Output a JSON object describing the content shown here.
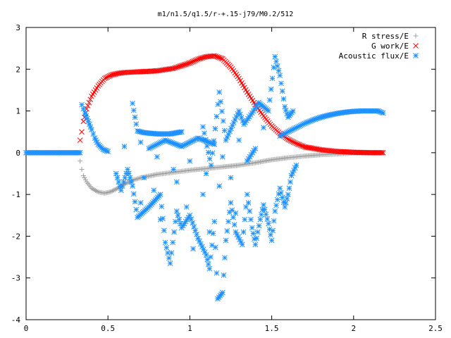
{
  "chart_data": {
    "type": "scatter",
    "title": "m1/n1.5/q1.5/r-+.15-j79/M0.2/512",
    "xlabel": "",
    "ylabel": "",
    "xlim": [
      0,
      2.5
    ],
    "ylim": [
      -4,
      3
    ],
    "x_ticks": [
      "0",
      "0.5",
      "1",
      "1.5",
      "2",
      "2.5"
    ],
    "y_ticks": [
      "3",
      "2",
      "1",
      "0",
      "-1",
      "-2",
      "-3",
      "-4"
    ],
    "grid": false,
    "legend_position": "top-right",
    "series": [
      {
        "name": "R stress/E",
        "marker": "plus",
        "color": "#a0a0a0",
        "points": [
          [
            0.33,
            -0.2
          ],
          [
            0.34,
            -0.4
          ],
          [
            0.35,
            -0.55
          ],
          [
            0.37,
            -0.7
          ],
          [
            0.4,
            -0.85
          ],
          [
            0.44,
            -0.94
          ],
          [
            0.48,
            -0.97
          ],
          [
            0.52,
            -0.93
          ],
          [
            0.56,
            -0.85
          ],
          [
            0.6,
            -0.75
          ],
          [
            0.65,
            -0.66
          ],
          [
            0.7,
            -0.6
          ],
          [
            0.8,
            -0.52
          ],
          [
            0.9,
            -0.47
          ],
          [
            1.0,
            -0.42
          ],
          [
            1.1,
            -0.38
          ],
          [
            1.2,
            -0.34
          ],
          [
            1.3,
            -0.3
          ],
          [
            1.4,
            -0.24
          ],
          [
            1.5,
            -0.17
          ],
          [
            1.6,
            -0.12
          ],
          [
            1.7,
            -0.08
          ],
          [
            1.8,
            -0.05
          ],
          [
            1.9,
            -0.03
          ],
          [
            2.0,
            -0.01
          ],
          [
            2.1,
            0.0
          ],
          [
            2.18,
            0.0
          ]
        ]
      },
      {
        "name": "G work/E",
        "marker": "cross",
        "color": "#ff0000",
        "points": [
          [
            0.33,
            0.3
          ],
          [
            0.34,
            0.5
          ],
          [
            0.35,
            0.75
          ],
          [
            0.37,
            1.05
          ],
          [
            0.4,
            1.35
          ],
          [
            0.44,
            1.6
          ],
          [
            0.48,
            1.78
          ],
          [
            0.52,
            1.86
          ],
          [
            0.56,
            1.9
          ],
          [
            0.6,
            1.92
          ],
          [
            0.7,
            1.94
          ],
          [
            0.8,
            1.96
          ],
          [
            0.9,
            2.02
          ],
          [
            1.0,
            2.15
          ],
          [
            1.05,
            2.24
          ],
          [
            1.1,
            2.3
          ],
          [
            1.15,
            2.32
          ],
          [
            1.2,
            2.25
          ],
          [
            1.25,
            2.05
          ],
          [
            1.3,
            1.78
          ],
          [
            1.35,
            1.45
          ],
          [
            1.4,
            1.15
          ],
          [
            1.45,
            0.88
          ],
          [
            1.5,
            0.64
          ],
          [
            1.55,
            0.46
          ],
          [
            1.6,
            0.32
          ],
          [
            1.65,
            0.22
          ],
          [
            1.7,
            0.14
          ],
          [
            1.8,
            0.07
          ],
          [
            1.9,
            0.03
          ],
          [
            2.0,
            0.01
          ],
          [
            2.1,
            0.0
          ],
          [
            2.18,
            0.0
          ]
        ]
      },
      {
        "name": "Acoustic flux/E",
        "marker": "star",
        "color": "#1e90ff",
        "points": [
          [
            0.0,
            0.0
          ],
          [
            0.05,
            0.0
          ],
          [
            0.1,
            0.0
          ],
          [
            0.15,
            0.0
          ],
          [
            0.2,
            0.0
          ],
          [
            0.25,
            0.0
          ],
          [
            0.3,
            0.0
          ],
          [
            0.33,
            0.0
          ],
          [
            0.34,
            1.15
          ],
          [
            0.36,
            0.95
          ],
          [
            0.38,
            0.75
          ],
          [
            0.4,
            0.55
          ],
          [
            0.42,
            0.35
          ],
          [
            0.44,
            0.2
          ],
          [
            0.47,
            0.08
          ],
          [
            0.5,
            0.03
          ],
          [
            1.55,
            0.4
          ],
          [
            1.6,
            0.5
          ],
          [
            1.65,
            0.6
          ],
          [
            1.7,
            0.7
          ],
          [
            1.75,
            0.78
          ],
          [
            1.8,
            0.85
          ],
          [
            1.85,
            0.9
          ],
          [
            1.9,
            0.94
          ],
          [
            1.95,
            0.97
          ],
          [
            2.0,
            0.99
          ],
          [
            2.05,
            1.0
          ],
          [
            2.1,
            1.0
          ],
          [
            2.15,
            1.0
          ],
          [
            2.18,
            0.95
          ],
          [
            0.65,
            1.18
          ],
          [
            0.68,
            0.52
          ],
          [
            0.72,
            0.48
          ],
          [
            0.8,
            0.45
          ],
          [
            0.88,
            0.45
          ],
          [
            0.95,
            0.5
          ],
          [
            1.08,
            0.62
          ],
          [
            1.13,
            -0.3
          ],
          [
            1.18,
            1.45
          ],
          [
            1.22,
            0.3
          ],
          [
            1.3,
            1.0
          ],
          [
            1.33,
            0.68
          ],
          [
            1.38,
            0.95
          ],
          [
            1.42,
            1.2
          ],
          [
            1.48,
            1.0
          ],
          [
            1.52,
            2.3
          ],
          [
            1.55,
            1.85
          ],
          [
            1.58,
            1.1
          ],
          [
            1.6,
            0.85
          ],
          [
            1.63,
            1.0
          ],
          [
            1.45,
            0.6
          ],
          [
            1.3,
            0.3
          ],
          [
            1.2,
            -0.1
          ],
          [
            1.1,
            -0.5
          ],
          [
            1.0,
            -0.2
          ],
          [
            0.9,
            -0.4
          ],
          [
            0.8,
            -0.1
          ],
          [
            0.72,
            -0.6
          ],
          [
            0.7,
            0.25
          ],
          [
            0.6,
            0.15
          ],
          [
            0.55,
            -0.5
          ],
          [
            0.58,
            -0.9
          ],
          [
            0.62,
            -0.4
          ],
          [
            0.65,
            -0.8
          ],
          [
            0.68,
            -1.55
          ],
          [
            0.75,
            -1.3
          ],
          [
            0.82,
            -1.0
          ],
          [
            0.85,
            -2.15
          ],
          [
            0.88,
            -2.65
          ],
          [
            0.92,
            -1.4
          ],
          [
            0.95,
            -1.8
          ],
          [
            1.0,
            -1.5
          ],
          [
            1.05,
            -2.05
          ],
          [
            1.1,
            -2.45
          ],
          [
            1.12,
            -2.78
          ],
          [
            1.15,
            -1.65
          ],
          [
            1.17,
            -3.5
          ],
          [
            1.2,
            -3.35
          ],
          [
            1.22,
            -2.1
          ],
          [
            1.25,
            -1.2
          ],
          [
            1.28,
            -1.9
          ],
          [
            1.32,
            -2.2
          ],
          [
            1.35,
            -1.0
          ],
          [
            1.38,
            -1.8
          ],
          [
            1.4,
            -2.2
          ],
          [
            1.43,
            -1.6
          ],
          [
            1.45,
            -1.25
          ],
          [
            1.48,
            -1.7
          ],
          [
            1.5,
            -2.1
          ],
          [
            1.52,
            -1.4
          ],
          [
            1.55,
            -0.85
          ],
          [
            1.58,
            -1.3
          ],
          [
            1.6,
            -1.0
          ],
          [
            1.62,
            -0.55
          ],
          [
            1.65,
            -0.3
          ],
          [
            1.25,
            -0.6
          ],
          [
            1.18,
            -0.8
          ],
          [
            1.08,
            -1.0
          ],
          [
            0.98,
            -1.3
          ],
          [
            0.92,
            -0.7
          ],
          [
            0.78,
            -0.9
          ],
          [
            0.75,
            0.1
          ],
          [
            0.85,
            0.3
          ],
          [
            0.95,
            0.15
          ],
          [
            1.05,
            0.35
          ],
          [
            1.15,
            0.2
          ],
          [
            1.35,
            -0.2
          ],
          [
            1.4,
            0.1
          ],
          [
            1.28,
            -1.45
          ],
          [
            1.12,
            -1.9
          ],
          [
            1.02,
            -2.3
          ],
          [
            0.82,
            -1.6
          ],
          [
            0.7,
            -1.2
          ]
        ]
      }
    ]
  }
}
